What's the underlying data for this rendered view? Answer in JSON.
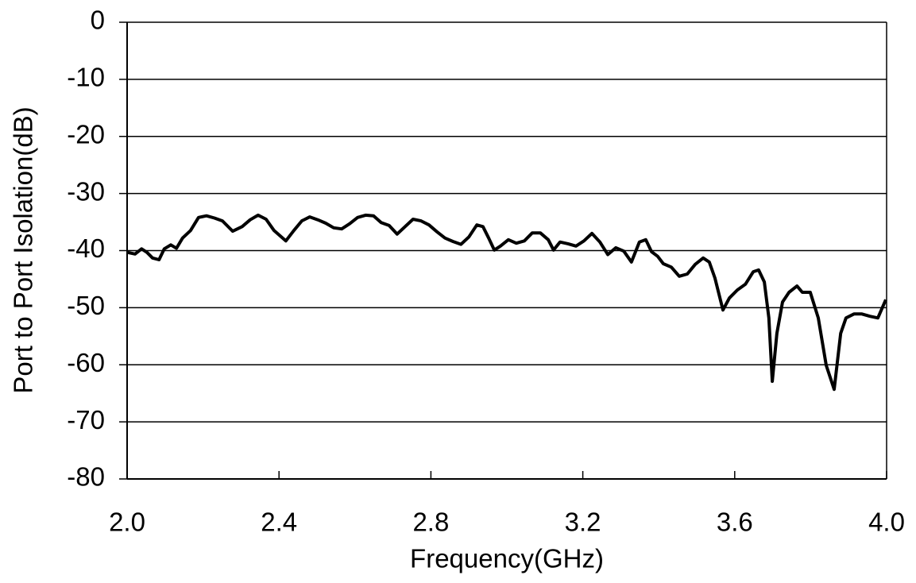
{
  "chart_data": {
    "type": "line",
    "x_label": "Frequency(GHz)",
    "y_label": "Port to Port Isolation(dB)",
    "xlim": [
      2,
      4
    ],
    "xticks": [
      {
        "value": 2,
        "label": "2.0"
      },
      2.4,
      2.8,
      3.2,
      3.6,
      {
        "value": 4,
        "label": "4.0"
      }
    ],
    "ylim": [
      -80,
      0
    ],
    "yticks": [
      0,
      -10,
      -20,
      -30,
      -40,
      -50,
      -60,
      -70,
      -80
    ],
    "grid": true,
    "color": "#000000",
    "x": [
      2.0,
      2.021,
      2.038,
      2.052,
      2.067,
      2.084,
      2.098,
      2.115,
      2.13,
      2.146,
      2.167,
      2.188,
      2.209,
      2.23,
      2.251,
      2.278,
      2.303,
      2.324,
      2.345,
      2.366,
      2.387,
      2.418,
      2.439,
      2.46,
      2.481,
      2.502,
      2.523,
      2.544,
      2.565,
      2.586,
      2.607,
      2.628,
      2.649,
      2.669,
      2.69,
      2.711,
      2.732,
      2.753,
      2.774,
      2.795,
      2.816,
      2.837,
      2.858,
      2.879,
      2.9,
      2.921,
      2.937,
      2.952,
      2.967,
      2.983,
      3.004,
      3.025,
      3.046,
      3.067,
      3.088,
      3.109,
      3.123,
      3.14,
      3.161,
      3.182,
      3.203,
      3.224,
      3.245,
      3.266,
      3.287,
      3.308,
      3.328,
      3.349,
      3.366,
      3.381,
      3.397,
      3.412,
      3.433,
      3.454,
      3.475,
      3.496,
      3.517,
      3.533,
      3.548,
      3.569,
      3.586,
      3.607,
      3.628,
      3.649,
      3.663,
      3.678,
      3.69,
      3.699,
      3.711,
      3.726,
      3.743,
      3.764,
      3.778,
      3.799,
      3.82,
      3.841,
      3.862,
      3.879,
      3.893,
      3.914,
      3.935,
      3.956,
      3.977,
      3.998
    ],
    "values": [
      -40.3,
      -40.6,
      -39.7,
      -40.3,
      -41.3,
      -41.6,
      -39.7,
      -39,
      -39.6,
      -37.8,
      -36.5,
      -34.2,
      -33.9,
      -34.3,
      -34.8,
      -36.6,
      -35.8,
      -34.6,
      -33.8,
      -34.5,
      -36.5,
      -38.3,
      -36.5,
      -34.8,
      -34.1,
      -34.6,
      -35.2,
      -36,
      -36.2,
      -35.3,
      -34.2,
      -33.8,
      -33.9,
      -35.1,
      -35.6,
      -37.1,
      -35.8,
      -34.5,
      -34.8,
      -35.5,
      -36.7,
      -37.8,
      -38.4,
      -38.9,
      -37.6,
      -35.5,
      -35.8,
      -37.8,
      -39.9,
      -39.2,
      -38.1,
      -38.7,
      -38.3,
      -36.9,
      -36.9,
      -38.1,
      -39.9,
      -38.5,
      -38.8,
      -39.2,
      -38.3,
      -37,
      -38.5,
      -40.7,
      -39.5,
      -40.1,
      -42,
      -38.5,
      -38.1,
      -40.2,
      -41,
      -42.3,
      -42.9,
      -44.5,
      -44.1,
      -42.4,
      -41.3,
      -42,
      -44.8,
      -50.4,
      -48.3,
      -46.9,
      -45.9,
      -43.7,
      -43.4,
      -45.5,
      -51.8,
      -62.9,
      -54.5,
      -49,
      -47.3,
      -46.2,
      -47.3,
      -47.3,
      -51.8,
      -60.1,
      -64.3,
      -54.5,
      -51.8,
      -51.1,
      -51.1,
      -51.5,
      -51.8,
      -48.6
    ]
  }
}
